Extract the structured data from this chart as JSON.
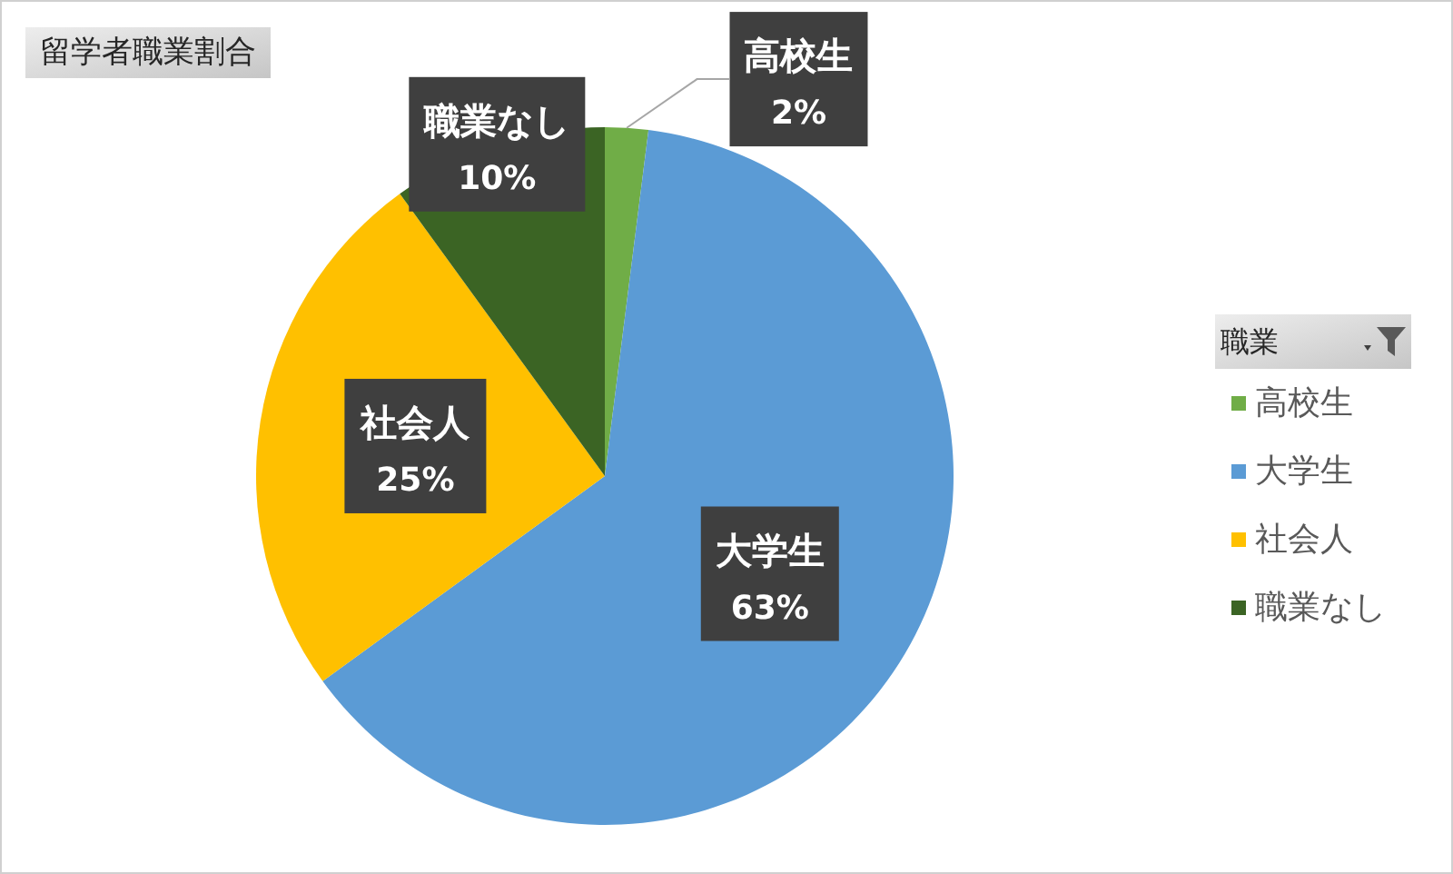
{
  "chart_data": {
    "type": "pie",
    "title": "留学者職業割合",
    "legend_title": "職業",
    "categories": [
      "高校生",
      "大学生",
      "社会人",
      "職業なし"
    ],
    "values": [
      2,
      63,
      25,
      10
    ],
    "colors": [
      "#70ad47",
      "#5b9bd5",
      "#ffc000",
      "#3b6424"
    ],
    "value_labels": [
      "2%",
      "63%",
      "25%",
      "10%"
    ],
    "legend": "right"
  }
}
